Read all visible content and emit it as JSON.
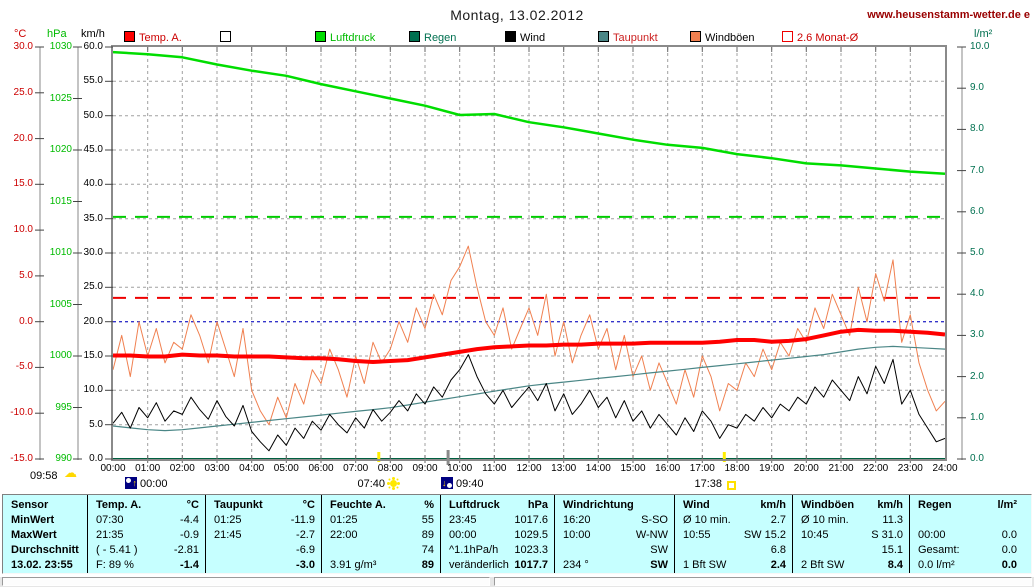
{
  "header": {
    "title": "Montag, 13.02.2012",
    "website": "www.heusenstamm-wetter.de e"
  },
  "legend": {
    "items": [
      {
        "label": "Temp. A.",
        "color": "#ff0000",
        "text_color": "#cc0000",
        "filled": true
      },
      {
        "label": "",
        "color": "#ffffff",
        "text_color": "#000000",
        "filled": true
      },
      {
        "label": "Luftdruck",
        "color": "#00dd00",
        "text_color": "#00bb00",
        "filled": true
      },
      {
        "label": "Regen",
        "color": "#007050",
        "text_color": "#007050",
        "filled": true
      },
      {
        "label": "Wind",
        "color": "#000000",
        "text_color": "#000000",
        "filled": true
      },
      {
        "label": "Taupunkt",
        "color": "#4a8686",
        "text_color": "#cc2222",
        "filled": true
      },
      {
        "label": "Windböen",
        "color": "#f08050",
        "text_color": "#000000",
        "filled": true
      },
      {
        "label": "2.6 Monat-Ø",
        "color": "#ee0000",
        "text_color": "#cc0000",
        "filled": false
      }
    ]
  },
  "markers": {
    "bottom_left_time": "09:58",
    "events": [
      {
        "time": "00:00",
        "icon": "moonrise-icon",
        "hours": 0
      },
      {
        "time": "07:40",
        "icon": "sunrise-icon",
        "hours": 7.667
      },
      {
        "time": "09:40",
        "icon": "moonset-icon",
        "hours": 9.667
      },
      {
        "time": "17:38",
        "icon": "sunset-icon",
        "hours": 17.633
      }
    ]
  },
  "chart_data": {
    "type": "line",
    "title": "Montag, 13.02.2012",
    "grid": true,
    "x_axis": {
      "start_hour": 0,
      "end_hour": 24,
      "tick_every_hours": 1,
      "tick_label_format": "HH:00"
    },
    "axes": {
      "temp_c": {
        "label": "°C",
        "min": -15,
        "max": 30,
        "ticks": [
          30,
          25,
          20,
          15,
          10,
          5,
          0,
          -5,
          -10,
          -15
        ],
        "color": "#cc0000"
      },
      "pressure_hpa": {
        "label": "hPa",
        "min": 990,
        "max": 1030,
        "ticks": [
          1030,
          1025,
          1020,
          1015,
          1010,
          1005,
          1000,
          995,
          990
        ],
        "color": "#00bb00"
      },
      "wind_kmh": {
        "label": "km/h",
        "min": 0,
        "max": 60,
        "ticks": [
          60,
          55,
          50,
          45,
          40,
          35,
          30,
          25,
          20,
          15,
          10,
          5,
          0
        ],
        "color": "#000000"
      },
      "rain_lm2": {
        "label": "l/m²",
        "min": 0,
        "max": 10,
        "ticks": [
          10,
          9,
          8,
          7,
          6,
          5,
          4,
          3,
          2,
          1,
          0
        ],
        "color": "#007050"
      }
    },
    "reference_lines": [
      {
        "name": "monthly-average-temp-2.6C",
        "value_c": 2.6,
        "color": "#ee0000",
        "style": "dashed"
      },
      {
        "name": "freezing-line-0C",
        "value_c": 0,
        "color": "#0000cc",
        "style": "dotted"
      },
      {
        "name": "pressure-reference",
        "value_hpa": 1013.5,
        "color": "#00cc00",
        "style": "dashed"
      }
    ],
    "series": [
      {
        "name": "Luftdruck",
        "axis": "pressure_hpa",
        "color": "#00dd00",
        "width": 2.5,
        "step_hours": 1,
        "z": 5,
        "values": [
          1029.5,
          1029.3,
          1029.0,
          1028.3,
          1027.7,
          1027.2,
          1026.4,
          1025.7,
          1025.0,
          1024.3,
          1023.4,
          1023.5,
          1022.7,
          1022.2,
          1021.6,
          1021.0,
          1020.5,
          1020.2,
          1019.6,
          1019.2,
          1018.7,
          1018.5,
          1018.2,
          1017.9,
          1017.7
        ]
      },
      {
        "name": "Temp. A.",
        "axis": "temp_c",
        "color": "#ff0000",
        "width": 4,
        "step_hours": 0.5,
        "z": 6,
        "values": [
          -3.7,
          -3.7,
          -3.8,
          -3.8,
          -3.6,
          -3.7,
          -3.7,
          -3.8,
          -3.8,
          -3.8,
          -3.9,
          -4.0,
          -4.0,
          -4.1,
          -4.3,
          -4.4,
          -4.3,
          -4.2,
          -3.9,
          -3.6,
          -3.3,
          -3.0,
          -2.8,
          -2.7,
          -2.6,
          -2.6,
          -2.5,
          -2.5,
          -2.4,
          -2.4,
          -2.4,
          -2.3,
          -2.3,
          -2.3,
          -2.3,
          -2.2,
          -2.0,
          -2.0,
          -2.2,
          -2.1,
          -1.9,
          -1.5,
          -1.1,
          -0.9,
          -1.0,
          -1.0,
          -1.1,
          -1.2,
          -1.4
        ]
      },
      {
        "name": "Taupunkt",
        "axis": "temp_c",
        "color": "#4a8686",
        "width": 1.2,
        "step_hours": 0.5,
        "z": 2,
        "values": [
          -11.4,
          -11.6,
          -11.8,
          -11.9,
          -11.8,
          -11.6,
          -11.4,
          -11.2,
          -11.0,
          -10.8,
          -10.6,
          -10.4,
          -10.2,
          -10.0,
          -9.8,
          -9.6,
          -9.4,
          -9.1,
          -8.8,
          -8.5,
          -8.2,
          -7.9,
          -7.6,
          -7.3,
          -7.0,
          -6.8,
          -6.6,
          -6.4,
          -6.2,
          -6.0,
          -5.8,
          -5.6,
          -5.4,
          -5.2,
          -5.0,
          -4.8,
          -4.6,
          -4.4,
          -4.2,
          -4.0,
          -3.8,
          -3.6,
          -3.3,
          -3.0,
          -2.8,
          -2.7,
          -2.8,
          -2.9,
          -3.0
        ]
      },
      {
        "name": "Wind",
        "axis": "wind_kmh",
        "color": "#000000",
        "width": 1,
        "step_hours": 0.25,
        "z": 3,
        "values": [
          5.2,
          6.8,
          4.5,
          7.5,
          6.0,
          8.2,
          5.5,
          7.0,
          6.5,
          9.0,
          7.2,
          5.8,
          8.5,
          6.2,
          4.8,
          7.8,
          4.0,
          2.5,
          1.2,
          3.5,
          2.0,
          4.5,
          3.0,
          5.5,
          4.2,
          6.5,
          5.0,
          3.8,
          6.0,
          4.5,
          7.2,
          5.5,
          6.8,
          8.5,
          7.0,
          9.5,
          8.0,
          10.5,
          9.0,
          11.5,
          13.0,
          15.2,
          12.0,
          9.5,
          8.0,
          10.0,
          7.5,
          9.0,
          10.5,
          8.5,
          11.0,
          7.0,
          9.5,
          6.5,
          8.0,
          10.0,
          7.5,
          9.0,
          6.0,
          8.5,
          5.5,
          7.0,
          4.5,
          6.5,
          5.0,
          3.5,
          6.0,
          4.0,
          7.0,
          5.5,
          3.0,
          5.0,
          4.5,
          6.5,
          5.5,
          7.5,
          6.0,
          8.0,
          7.0,
          9.0,
          8.0,
          10.5,
          9.0,
          11.5,
          10.0,
          8.5,
          12.0,
          9.5,
          13.5,
          11.0,
          14.5,
          8.0,
          10.0,
          6.5,
          4.5,
          2.5,
          3.0
        ]
      },
      {
        "name": "Windböen",
        "axis": "wind_kmh",
        "color": "#f08050",
        "width": 1,
        "step_hours": 0.25,
        "z": 1,
        "values": [
          13,
          18,
          12,
          20,
          15,
          19,
          14,
          17,
          16,
          21,
          18,
          14,
          20,
          16,
          12,
          19,
          10,
          7,
          5,
          9,
          6,
          11,
          8,
          13,
          11,
          16,
          13,
          9,
          15,
          11,
          17,
          14,
          16,
          20,
          17,
          22,
          19,
          24,
          21,
          26,
          28,
          31,
          25,
          20,
          18,
          22,
          16,
          19,
          22,
          18,
          24,
          15,
          20,
          14,
          18,
          21,
          16,
          19,
          13,
          18,
          12,
          15,
          10,
          14,
          11,
          8,
          13,
          9,
          15,
          12,
          7,
          11,
          10,
          14,
          12,
          16,
          13,
          17,
          15,
          19,
          17,
          22,
          19,
          24,
          21,
          18,
          25,
          20,
          27,
          23,
          29,
          17,
          21,
          14,
          10,
          7,
          8.4
        ]
      },
      {
        "name": "Regen",
        "axis": "rain_lm2",
        "color": "#006040",
        "width": 2,
        "step_hours": 12,
        "z": 4,
        "values": [
          0,
          0,
          0
        ]
      }
    ]
  },
  "table": {
    "row_labels": [
      "Sensor",
      "MinWert",
      "MaxWert",
      "Durchschnitt",
      "13.02. 23:55"
    ],
    "columns": [
      {
        "name": "Temp. A.",
        "unit": "°C",
        "rows": [
          [
            "07:30",
            "-4.4"
          ],
          [
            "21:35",
            "-0.9"
          ],
          [
            "( - 5.41 )",
            "-2.81"
          ],
          [
            "F: 89 %",
            "-1.4"
          ]
        ]
      },
      {
        "name": "Taupunkt",
        "unit": "°C",
        "rows": [
          [
            "01:25",
            "-11.9"
          ],
          [
            "21:45",
            "-2.7"
          ],
          [
            "",
            "-6.9"
          ],
          [
            "",
            "-3.0"
          ]
        ]
      },
      {
        "name": "Feuchte A.",
        "unit": "%",
        "rows": [
          [
            "01:25",
            "55"
          ],
          [
            "22:00",
            "89"
          ],
          [
            "",
            "74"
          ],
          [
            "3.91 g/m³",
            "89"
          ]
        ]
      },
      {
        "name": "Luftdruck",
        "unit": "hPa",
        "rows": [
          [
            "23:45",
            "1017.6"
          ],
          [
            "00:00",
            "1029.5"
          ],
          [
            "^1.1hPa/h",
            "1023.3"
          ],
          [
            "veränderlich",
            "1017.7"
          ]
        ]
      },
      {
        "name": "Windrichtung",
        "unit": "",
        "rows": [
          [
            "16:20",
            "S-SO"
          ],
          [
            "10:00",
            "W-NW"
          ],
          [
            "",
            "SW"
          ],
          [
            "234 °",
            "SW"
          ]
        ]
      },
      {
        "name": "Wind",
        "unit": "km/h",
        "rows": [
          [
            "Ø 10 min.",
            "2.7"
          ],
          [
            "10:55",
            "SW 15.2"
          ],
          [
            "",
            "6.8"
          ],
          [
            "1 Bft SW",
            "2.4"
          ]
        ]
      },
      {
        "name": "Windböen",
        "unit": "km/h",
        "rows": [
          [
            "Ø 10 min.",
            "11.3"
          ],
          [
            "10:45",
            "S 31.0"
          ],
          [
            "",
            "15.1"
          ],
          [
            "2 Bft SW",
            "8.4"
          ]
        ]
      },
      {
        "name": "Regen",
        "unit": "l/m²",
        "rows": [
          [
            "",
            ""
          ],
          [
            "00:00",
            "0.0"
          ],
          [
            "Gesamt:",
            "0.0"
          ],
          [
            "0.0 l/m²",
            "0.0"
          ]
        ]
      }
    ]
  }
}
